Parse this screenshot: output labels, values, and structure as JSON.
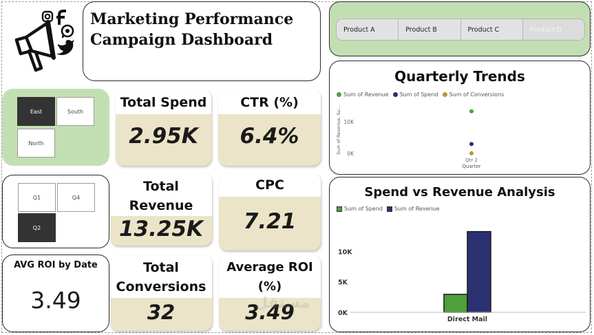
{
  "title": {
    "line1": "Marketing Performance",
    "line2": "Campaign Dashboard"
  },
  "logo": {
    "icon": "megaphone-social-icon"
  },
  "product_slicer": [
    "Product A",
    "Product B",
    "Product C",
    "Product D"
  ],
  "region_slicer": [
    {
      "label": "East",
      "selected": true
    },
    {
      "label": "South",
      "selected": false
    },
    {
      "label": "North",
      "selected": false
    }
  ],
  "quarter_slicer": [
    {
      "label": "Q1",
      "selected": false
    },
    {
      "label": "Q4",
      "selected": false
    },
    {
      "label": "Q2",
      "selected": true
    }
  ],
  "kpis": {
    "total_spend": {
      "label": "Total Spend",
      "value": "2.95K"
    },
    "ctr": {
      "label": "CTR (%)",
      "value": "6.4%"
    },
    "total_revenue": {
      "label_line1": "Total",
      "label_line2": "Revenue",
      "value": "13.25K"
    },
    "cpc": {
      "label": "CPC",
      "value": "7.21"
    },
    "total_conversions": {
      "label_line1": "Total",
      "label_line2": "Conversions",
      "value": "32"
    },
    "average_roi": {
      "label_line1": "Average ROI",
      "label_line2": "(%)",
      "value": "3.49"
    }
  },
  "avg_roi_by_date": {
    "label": "AVG ROI by Date",
    "value": "3.49"
  },
  "watermark": "مستقل",
  "colors": {
    "revenue_green": "#4ea03a",
    "spend_navy": "#2b3170",
    "conversions_gold": "#b59a2e",
    "panel_green": "#c2dfb3",
    "kpi_beige": "#ece4c8"
  },
  "chart_data": [
    {
      "type": "scatter",
      "title": "Quarterly Trends",
      "xlabel": "Quarter",
      "ylabel": "Sum of Revenue, Su...",
      "categories": [
        "Qtr 2"
      ],
      "series": [
        {
          "name": "Sum of Revenue",
          "values": [
            13250
          ]
        },
        {
          "name": "Sum of Spend",
          "values": [
            2950
          ]
        },
        {
          "name": "Sum of Conversions",
          "values": [
            32
          ]
        }
      ],
      "yticks": [
        "0K",
        "10K"
      ],
      "ylim": [
        0,
        16000
      ],
      "legend": "top-left"
    },
    {
      "type": "bar",
      "title": "Spend vs Revenue Analysis",
      "categories": [
        "Direct Mail"
      ],
      "series": [
        {
          "name": "Sum of Spend",
          "values": [
            2950
          ]
        },
        {
          "name": "Sum of Revenue",
          "values": [
            13250
          ]
        }
      ],
      "yticks": [
        "0K",
        "5K",
        "10K"
      ],
      "ylim": [
        0,
        14000
      ],
      "legend": "top-left"
    }
  ]
}
